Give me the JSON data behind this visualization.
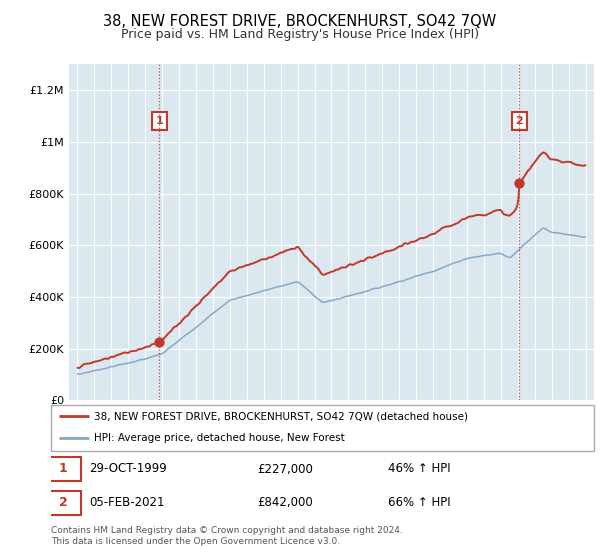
{
  "title": "38, NEW FOREST DRIVE, BROCKENHURST, SO42 7QW",
  "subtitle": "Price paid vs. HM Land Registry's House Price Index (HPI)",
  "title_fontsize": 10.5,
  "subtitle_fontsize": 9,
  "ylim": [
    0,
    1300000
  ],
  "yticks": [
    0,
    200000,
    400000,
    600000,
    800000,
    1000000,
    1200000
  ],
  "ytick_labels": [
    "£0",
    "£200K",
    "£400K",
    "£600K",
    "£800K",
    "£1M",
    "£1.2M"
  ],
  "purchase1_year": 1999.83,
  "purchase1_price": 227000,
  "purchase2_year": 2021.09,
  "purchase2_price": 842000,
  "red_color": "#c0392b",
  "blue_color": "#85a9c5",
  "vline_color": "#c0392b",
  "grid_color": "#c8d8e8",
  "plot_bg_color": "#dce8f0",
  "background_color": "#ffffff",
  "legend_line1": "38, NEW FOREST DRIVE, BROCKENHURST, SO42 7QW (detached house)",
  "legend_line2": "HPI: Average price, detached house, New Forest",
  "table_row1_date": "29-OCT-1999",
  "table_row1_price": "£227,000",
  "table_row1_hpi": "46% ↑ HPI",
  "table_row2_date": "05-FEB-2021",
  "table_row2_price": "£842,000",
  "table_row2_hpi": "66% ↑ HPI",
  "footer": "Contains HM Land Registry data © Crown copyright and database right 2024.\nThis data is licensed under the Open Government Licence v3.0."
}
